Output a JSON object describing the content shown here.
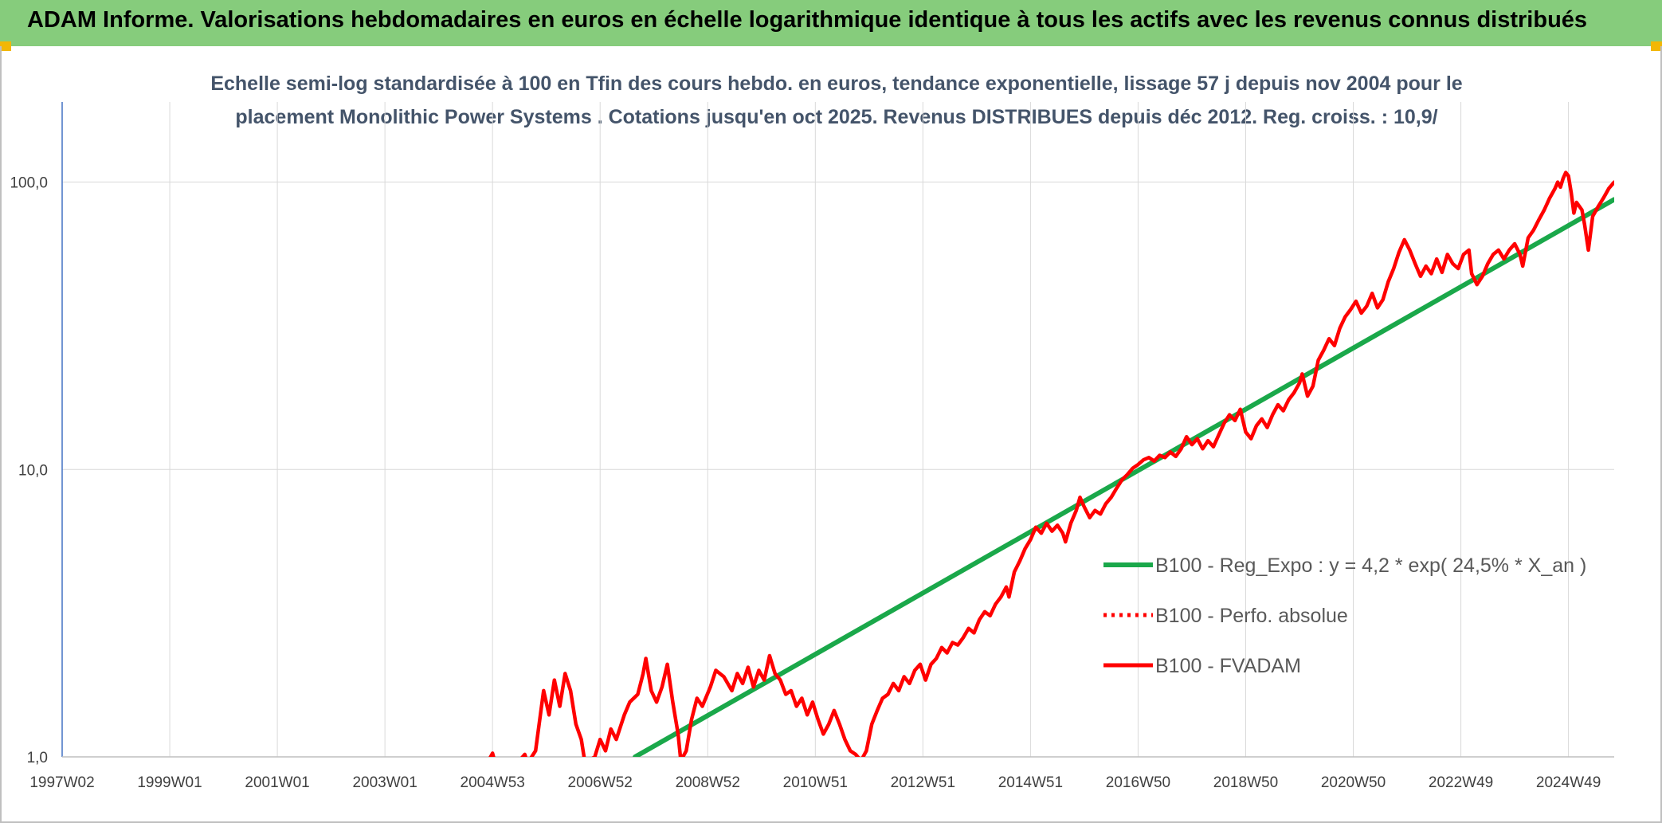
{
  "header": {
    "title": "ADAM Informe. Valorisations hebdomadaires en euros en échelle logarithmique identique à tous les actifs avec les revenus connus distribués",
    "background": "#86cc7c"
  },
  "chart_data": {
    "type": "line",
    "title_lines": [
      "Echelle semi-log standardisée à 100 en Tfin des cours hebdo. en euros, tendance exponentielle, lissage 57 j depuis nov 2004 pour le",
      "placement Monolithic Power Systems . Cotations jusqu'en oct 2025. Revenus DISTRIBUES depuis déc 2012. Reg. croiss. : 10,9/"
    ],
    "y_scale": "log",
    "ylim": [
      1,
      190
    ],
    "xlim": [
      1997.0,
      2025.85
    ],
    "y_ticks": [
      {
        "value": 1,
        "label": "1,0"
      },
      {
        "value": 10,
        "label": "10,0"
      },
      {
        "value": 100,
        "label": "100,0"
      }
    ],
    "x_ticks": [
      {
        "value": 1997.0,
        "label": "1997W02"
      },
      {
        "value": 1999.0,
        "label": "1999W01"
      },
      {
        "value": 2001.0,
        "label": "2001W01"
      },
      {
        "value": 2003.0,
        "label": "2003W01"
      },
      {
        "value": 2005.0,
        "label": "2004W53"
      },
      {
        "value": 2007.0,
        "label": "2006W52"
      },
      {
        "value": 2009.0,
        "label": "2008W52"
      },
      {
        "value": 2011.0,
        "label": "2010W51"
      },
      {
        "value": 2013.0,
        "label": "2012W51"
      },
      {
        "value": 2015.0,
        "label": "2014W51"
      },
      {
        "value": 2017.0,
        "label": "2016W50"
      },
      {
        "value": 2019.0,
        "label": "2018W50"
      },
      {
        "value": 2021.0,
        "label": "2020W50"
      },
      {
        "value": 2023.0,
        "label": "2022W49"
      },
      {
        "value": 2025.0,
        "label": "2024W49"
      }
    ],
    "grid": true,
    "legend_position": "right-middle",
    "series": [
      {
        "name": "B100 - Reg_Expo : y = 4,2 * exp( 24,5% *  X_an )",
        "color": "#1aa84a",
        "style": "solid",
        "points": [
          [
            2007.65,
            1.0
          ],
          [
            2025.85,
            87.0
          ]
        ]
      },
      {
        "name": "B100 - Perfo. absolue",
        "color": "#ff0000",
        "style": "dotted",
        "points": []
      },
      {
        "name": "B100 - FVADAM",
        "color": "#ff0000",
        "style": "solid",
        "points": [
          [
            2004.9,
            0.95
          ],
          [
            2005.0,
            1.03
          ],
          [
            2005.05,
            0.95
          ],
          [
            2005.5,
            0.97
          ],
          [
            2005.6,
            1.02
          ],
          [
            2005.65,
            0.95
          ],
          [
            2005.8,
            1.05
          ],
          [
            2005.95,
            1.7
          ],
          [
            2006.05,
            1.4
          ],
          [
            2006.15,
            1.85
          ],
          [
            2006.25,
            1.5
          ],
          [
            2006.35,
            1.95
          ],
          [
            2006.45,
            1.7
          ],
          [
            2006.55,
            1.3
          ],
          [
            2006.65,
            1.15
          ],
          [
            2006.72,
            0.95
          ],
          [
            2006.9,
            1.0
          ],
          [
            2007.0,
            1.15
          ],
          [
            2007.1,
            1.05
          ],
          [
            2007.2,
            1.25
          ],
          [
            2007.3,
            1.15
          ],
          [
            2007.45,
            1.4
          ],
          [
            2007.55,
            1.55
          ],
          [
            2007.7,
            1.65
          ],
          [
            2007.8,
            1.95
          ],
          [
            2007.85,
            2.2
          ],
          [
            2007.95,
            1.7
          ],
          [
            2008.05,
            1.55
          ],
          [
            2008.15,
            1.75
          ],
          [
            2008.25,
            2.1
          ],
          [
            2008.35,
            1.55
          ],
          [
            2008.45,
            1.2
          ],
          [
            2008.5,
            0.97
          ],
          [
            2008.6,
            1.05
          ],
          [
            2008.7,
            1.35
          ],
          [
            2008.8,
            1.6
          ],
          [
            2008.9,
            1.5
          ],
          [
            2009.05,
            1.75
          ],
          [
            2009.15,
            2.0
          ],
          [
            2009.3,
            1.9
          ],
          [
            2009.45,
            1.7
          ],
          [
            2009.55,
            1.95
          ],
          [
            2009.65,
            1.8
          ],
          [
            2009.75,
            2.05
          ],
          [
            2009.85,
            1.75
          ],
          [
            2009.95,
            2.0
          ],
          [
            2010.05,
            1.85
          ],
          [
            2010.15,
            2.25
          ],
          [
            2010.25,
            1.95
          ],
          [
            2010.35,
            1.85
          ],
          [
            2010.45,
            1.65
          ],
          [
            2010.55,
            1.7
          ],
          [
            2010.65,
            1.5
          ],
          [
            2010.75,
            1.6
          ],
          [
            2010.85,
            1.4
          ],
          [
            2010.95,
            1.55
          ],
          [
            2011.05,
            1.35
          ],
          [
            2011.15,
            1.2
          ],
          [
            2011.25,
            1.3
          ],
          [
            2011.35,
            1.45
          ],
          [
            2011.45,
            1.3
          ],
          [
            2011.55,
            1.15
          ],
          [
            2011.65,
            1.05
          ],
          [
            2011.75,
            1.02
          ],
          [
            2011.85,
            0.97
          ],
          [
            2011.95,
            1.05
          ],
          [
            2012.05,
            1.3
          ],
          [
            2012.15,
            1.45
          ],
          [
            2012.25,
            1.6
          ],
          [
            2012.35,
            1.65
          ],
          [
            2012.45,
            1.8
          ],
          [
            2012.55,
            1.7
          ],
          [
            2012.65,
            1.9
          ],
          [
            2012.75,
            1.8
          ],
          [
            2012.85,
            2.0
          ],
          [
            2012.95,
            2.1
          ],
          [
            2013.05,
            1.85
          ],
          [
            2013.15,
            2.1
          ],
          [
            2013.25,
            2.2
          ],
          [
            2013.35,
            2.4
          ],
          [
            2013.45,
            2.3
          ],
          [
            2013.55,
            2.5
          ],
          [
            2013.65,
            2.45
          ],
          [
            2013.75,
            2.6
          ],
          [
            2013.85,
            2.8
          ],
          [
            2013.95,
            2.7
          ],
          [
            2014.05,
            3.0
          ],
          [
            2014.15,
            3.2
          ],
          [
            2014.25,
            3.1
          ],
          [
            2014.35,
            3.4
          ],
          [
            2014.45,
            3.6
          ],
          [
            2014.55,
            3.9
          ],
          [
            2014.6,
            3.6
          ],
          [
            2014.7,
            4.4
          ],
          [
            2014.8,
            4.8
          ],
          [
            2014.9,
            5.3
          ],
          [
            2015.0,
            5.7
          ],
          [
            2015.1,
            6.3
          ],
          [
            2015.2,
            6.0
          ],
          [
            2015.3,
            6.5
          ],
          [
            2015.4,
            6.1
          ],
          [
            2015.5,
            6.4
          ],
          [
            2015.6,
            6.0
          ],
          [
            2015.65,
            5.6
          ],
          [
            2015.75,
            6.5
          ],
          [
            2015.85,
            7.2
          ],
          [
            2015.92,
            8.0
          ],
          [
            2016.0,
            7.4
          ],
          [
            2016.1,
            6.8
          ],
          [
            2016.2,
            7.2
          ],
          [
            2016.3,
            7.0
          ],
          [
            2016.4,
            7.6
          ],
          [
            2016.5,
            8.0
          ],
          [
            2016.6,
            8.6
          ],
          [
            2016.7,
            9.2
          ],
          [
            2016.8,
            9.6
          ],
          [
            2016.9,
            10.1
          ],
          [
            2017.0,
            10.4
          ],
          [
            2017.1,
            10.8
          ],
          [
            2017.2,
            11.0
          ],
          [
            2017.3,
            10.7
          ],
          [
            2017.4,
            11.2
          ],
          [
            2017.5,
            11.0
          ],
          [
            2017.6,
            11.5
          ],
          [
            2017.7,
            11.1
          ],
          [
            2017.8,
            11.8
          ],
          [
            2017.9,
            13.0
          ],
          [
            2018.0,
            12.2
          ],
          [
            2018.1,
            12.8
          ],
          [
            2018.2,
            11.8
          ],
          [
            2018.3,
            12.6
          ],
          [
            2018.4,
            12.0
          ],
          [
            2018.5,
            13.2
          ],
          [
            2018.6,
            14.5
          ],
          [
            2018.7,
            15.5
          ],
          [
            2018.8,
            14.8
          ],
          [
            2018.9,
            16.2
          ],
          [
            2019.0,
            13.5
          ],
          [
            2019.1,
            12.8
          ],
          [
            2019.2,
            14.2
          ],
          [
            2019.3,
            15.0
          ],
          [
            2019.4,
            14.0
          ],
          [
            2019.5,
            15.5
          ],
          [
            2019.6,
            16.8
          ],
          [
            2019.7,
            16.0
          ],
          [
            2019.8,
            17.5
          ],
          [
            2019.9,
            18.5
          ],
          [
            2020.0,
            20.0
          ],
          [
            2020.05,
            21.5
          ],
          [
            2020.15,
            18.0
          ],
          [
            2020.25,
            19.5
          ],
          [
            2020.35,
            24.0
          ],
          [
            2020.45,
            26.0
          ],
          [
            2020.55,
            28.5
          ],
          [
            2020.65,
            27.0
          ],
          [
            2020.75,
            31.0
          ],
          [
            2020.85,
            34.0
          ],
          [
            2020.95,
            36.0
          ],
          [
            2021.05,
            38.5
          ],
          [
            2021.15,
            35.0
          ],
          [
            2021.25,
            37.0
          ],
          [
            2021.35,
            41.0
          ],
          [
            2021.45,
            36.5
          ],
          [
            2021.55,
            39.0
          ],
          [
            2021.65,
            45.0
          ],
          [
            2021.75,
            50.0
          ],
          [
            2021.85,
            57.0
          ],
          [
            2021.95,
            63.0
          ],
          [
            2022.05,
            58.0
          ],
          [
            2022.15,
            52.0
          ],
          [
            2022.25,
            47.0
          ],
          [
            2022.35,
            51.0
          ],
          [
            2022.45,
            48.0
          ],
          [
            2022.55,
            54.0
          ],
          [
            2022.65,
            48.5
          ],
          [
            2022.75,
            56.0
          ],
          [
            2022.85,
            52.0
          ],
          [
            2022.95,
            50.0
          ],
          [
            2023.05,
            56.0
          ],
          [
            2023.15,
            58.0
          ],
          [
            2023.2,
            48.0
          ],
          [
            2023.3,
            44.0
          ],
          [
            2023.4,
            47.0
          ],
          [
            2023.5,
            52.0
          ],
          [
            2023.6,
            56.0
          ],
          [
            2023.7,
            58.0
          ],
          [
            2023.8,
            54.0
          ],
          [
            2023.9,
            58.0
          ],
          [
            2024.0,
            61.0
          ],
          [
            2024.1,
            56.0
          ],
          [
            2024.15,
            51.0
          ],
          [
            2024.25,
            64.0
          ],
          [
            2024.35,
            68.0
          ],
          [
            2024.45,
            74.0
          ],
          [
            2024.55,
            80.0
          ],
          [
            2024.65,
            88.0
          ],
          [
            2024.75,
            95.0
          ],
          [
            2024.8,
            100.0
          ],
          [
            2024.85,
            96.0
          ],
          [
            2024.9,
            103.0
          ],
          [
            2024.95,
            108.0
          ],
          [
            2025.0,
            105.0
          ],
          [
            2025.05,
            92.0
          ],
          [
            2025.1,
            78.0
          ],
          [
            2025.15,
            85.0
          ],
          [
            2025.25,
            80.0
          ],
          [
            2025.3,
            71.0
          ],
          [
            2025.37,
            58.0
          ],
          [
            2025.45,
            76.0
          ],
          [
            2025.55,
            82.0
          ],
          [
            2025.65,
            88.0
          ],
          [
            2025.75,
            95.0
          ],
          [
            2025.85,
            100.0
          ]
        ]
      }
    ]
  }
}
